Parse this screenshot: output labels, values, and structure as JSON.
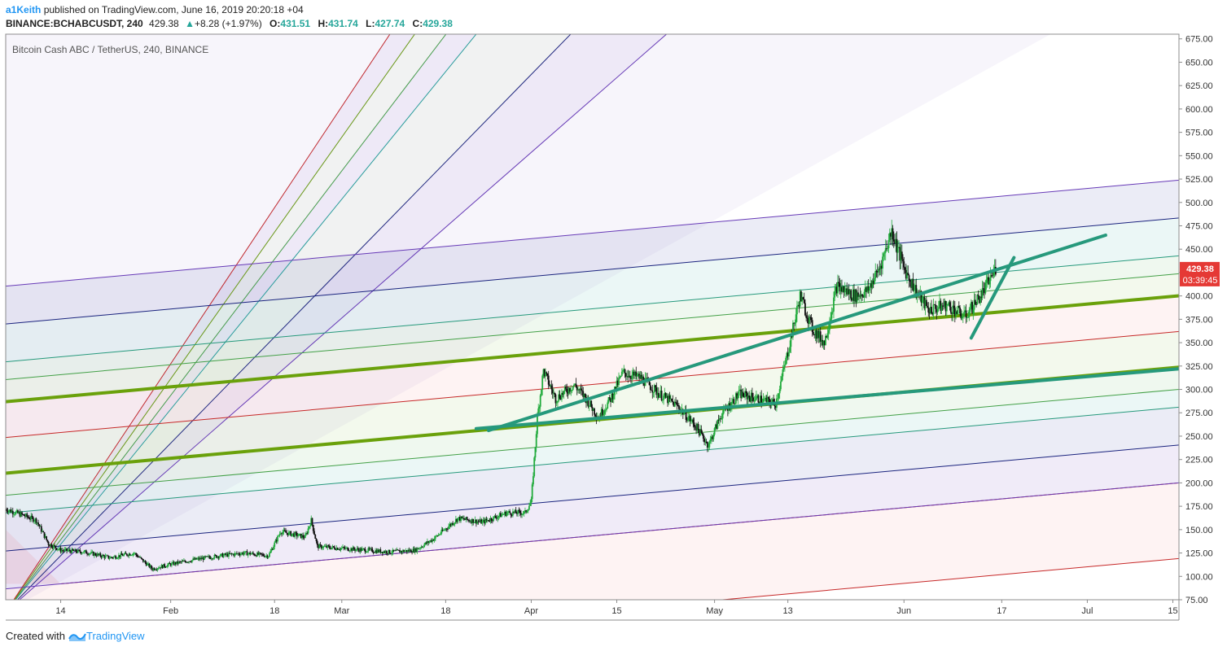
{
  "header": {
    "author": "a1Keith",
    "published_text": "published on TradingView.com, June 16, 2019 20:20:18 +04",
    "symbol": "BINANCE:BCHABCUSDT, 240",
    "last": "429.38",
    "change_arrow": "▲",
    "change": "+8.28 (+1.97%)",
    "o_label": "O:",
    "o_value": "431.51",
    "h_label": "H:",
    "h_value": "431.74",
    "l_label": "L:",
    "l_value": "427.74",
    "c_label": "C:",
    "c_value": "429.38"
  },
  "footer": {
    "created_with": "Created with",
    "brand": "TradingView",
    "logo_icon": "tradingview-logo-icon"
  },
  "colors": {
    "up": "#26a69a",
    "down": "#ef5350",
    "candle_up": "#22ab3d",
    "candle_down": "#111111",
    "trend": "#26997c",
    "price_tag": "#e53935"
  },
  "chart_data": {
    "type": "candlestick",
    "title": "Bitcoin Cash ABC / TetherUS, 240, BINANCE",
    "y_ticks": [
      "675.00",
      "650.00",
      "625.00",
      "600.00",
      "575.00",
      "550.00",
      "525.00",
      "500.00",
      "475.00",
      "450.00",
      "425.00",
      "400.00",
      "375.00",
      "350.00",
      "325.00",
      "300.00",
      "275.00",
      "250.00",
      "225.00",
      "200.00",
      "175.00",
      "150.00",
      "125.00",
      "100.00",
      "75.00"
    ],
    "x_ticks": [
      {
        "label": "14",
        "date": "2019-01-14"
      },
      {
        "label": "Feb",
        "date": "2019-02-01"
      },
      {
        "label": "18",
        "date": "2019-02-18"
      },
      {
        "label": "Mar",
        "date": "2019-03-01"
      },
      {
        "label": "18",
        "date": "2019-03-18"
      },
      {
        "label": "Apr",
        "date": "2019-04-01"
      },
      {
        "label": "15",
        "date": "2019-04-15"
      },
      {
        "label": "May",
        "date": "2019-05-01"
      },
      {
        "label": "13",
        "date": "2019-05-13"
      },
      {
        "label": "Jun",
        "date": "2019-06-01"
      },
      {
        "label": "17",
        "date": "2019-06-17"
      },
      {
        "label": "Jul",
        "date": "2019-07-01"
      },
      {
        "label": "15",
        "date": "2019-07-15"
      }
    ],
    "ylim": [
      75,
      680
    ],
    "xlim": [
      "2019-01-05",
      "2019-07-16"
    ],
    "last_price_label": "429.38",
    "countdown_label": "03:39:45",
    "price_path": [
      [
        "2019-01-05",
        172
      ],
      [
        "2019-01-08",
        165
      ],
      [
        "2019-01-10",
        160
      ],
      [
        "2019-01-12",
        135
      ],
      [
        "2019-01-14",
        128
      ],
      [
        "2019-01-18",
        126
      ],
      [
        "2019-01-22",
        120
      ],
      [
        "2019-01-26",
        125
      ],
      [
        "2019-01-29",
        108
      ],
      [
        "2019-02-01",
        113
      ],
      [
        "2019-02-05",
        118
      ],
      [
        "2019-02-09",
        122
      ],
      [
        "2019-02-13",
        125
      ],
      [
        "2019-02-17",
        122
      ],
      [
        "2019-02-19",
        148
      ],
      [
        "2019-02-23",
        142
      ],
      [
        "2019-02-24",
        160
      ],
      [
        "2019-02-25",
        132
      ],
      [
        "2019-03-01",
        130
      ],
      [
        "2019-03-05",
        128
      ],
      [
        "2019-03-09",
        126
      ],
      [
        "2019-03-13",
        128
      ],
      [
        "2019-03-16",
        140
      ],
      [
        "2019-03-20",
        162
      ],
      [
        "2019-03-24",
        158
      ],
      [
        "2019-03-28",
        168
      ],
      [
        "2019-03-31",
        168
      ],
      [
        "2019-04-01",
        180
      ],
      [
        "2019-04-02",
        270
      ],
      [
        "2019-04-03",
        320
      ],
      [
        "2019-04-05",
        290
      ],
      [
        "2019-04-08",
        305
      ],
      [
        "2019-04-10",
        290
      ],
      [
        "2019-04-12",
        270
      ],
      [
        "2019-04-14",
        290
      ],
      [
        "2019-04-16",
        318
      ],
      [
        "2019-04-19",
        312
      ],
      [
        "2019-04-22",
        295
      ],
      [
        "2019-04-25",
        282
      ],
      [
        "2019-04-28",
        260
      ],
      [
        "2019-04-30",
        240
      ],
      [
        "2019-05-02",
        272
      ],
      [
        "2019-05-05",
        295
      ],
      [
        "2019-05-08",
        290
      ],
      [
        "2019-05-11",
        285
      ],
      [
        "2019-05-13",
        340
      ],
      [
        "2019-05-15",
        400
      ],
      [
        "2019-05-17",
        365
      ],
      [
        "2019-05-19",
        350
      ],
      [
        "2019-05-21",
        410
      ],
      [
        "2019-05-24",
        400
      ],
      [
        "2019-05-26",
        405
      ],
      [
        "2019-05-28",
        430
      ],
      [
        "2019-05-30",
        470
      ],
      [
        "2019-06-01",
        430
      ],
      [
        "2019-06-03",
        405
      ],
      [
        "2019-06-05",
        385
      ],
      [
        "2019-06-08",
        390
      ],
      [
        "2019-06-11",
        378
      ],
      [
        "2019-06-14",
        405
      ],
      [
        "2019-06-16",
        429.38
      ]
    ],
    "trend_lines": [
      {
        "from": [
          "2019-03-23",
          258
        ],
        "to": [
          "2019-07-16",
          322
        ],
        "color": "#26997c",
        "width": 4
      },
      {
        "from": [
          "2019-03-25",
          256
        ],
        "to": [
          "2019-07-04",
          465
        ],
        "color": "#26997c",
        "width": 4
      },
      {
        "from": [
          "2019-06-12",
          355
        ],
        "to": [
          "2019-06-19",
          441
        ],
        "color": "#26997c",
        "width": 4
      }
    ],
    "pitchfork": {
      "color": "#b71c1c",
      "levels": [
        {
          "c": 2.0,
          "color": "#673ab7",
          "fill": "rgba(103,58,183,0.13)"
        },
        {
          "c": 1.75,
          "color": "#1a237e",
          "fill": "rgba(57,73,171,0.10)"
        },
        {
          "c": 1.5,
          "color": "#26997c",
          "fill": "rgba(38,166,154,0.09)"
        },
        {
          "c": 1.382,
          "color": "#43a047",
          "fill": "rgba(76,175,80,0.09)"
        },
        {
          "c": 1.236,
          "color": "#6aa10b",
          "fill": "rgba(139,195,74,0.10)",
          "width": 4
        },
        {
          "c": 1.0,
          "color": "#c62828",
          "fill": "rgba(239,83,80,0.07)"
        },
        {
          "c": 0.764,
          "color": "#6aa10b",
          "fill": "rgba(139,195,74,0.10)",
          "width": 4
        },
        {
          "c": 0.618,
          "color": "#43a047",
          "fill": "rgba(76,175,80,0.09)"
        },
        {
          "c": 0.5,
          "color": "#26997c",
          "fill": "rgba(38,166,154,0.09)"
        },
        {
          "c": 0.25,
          "color": "#1a237e",
          "fill": "rgba(57,73,171,0.10)"
        },
        {
          "c": 0.0,
          "color": "#673ab7",
          "fill": "rgba(103,58,183,0.10)"
        },
        {
          "c": -0.5,
          "color": "#c62828",
          "fill": "rgba(239,83,80,0.07)"
        }
      ]
    },
    "fan": {
      "origin": [
        "2019-01-05",
        62
      ],
      "lines": [
        {
          "to": [
            "2019-07-10",
            1125
          ],
          "color": "#673ab7"
        },
        {
          "to": [
            "2019-06-22",
            1185
          ],
          "color": "#1a237e"
        },
        {
          "to": [
            "2019-06-02",
            1250
          ],
          "color": "#26a69a"
        },
        {
          "to": [
            "2019-05-27",
            1280
          ],
          "color": "#43a047"
        },
        {
          "to": [
            "2019-05-18",
            1290
          ],
          "color": "#6aa10b"
        },
        {
          "to": [
            "2019-05-14",
            1330
          ],
          "color": "#c62828"
        }
      ]
    }
  }
}
